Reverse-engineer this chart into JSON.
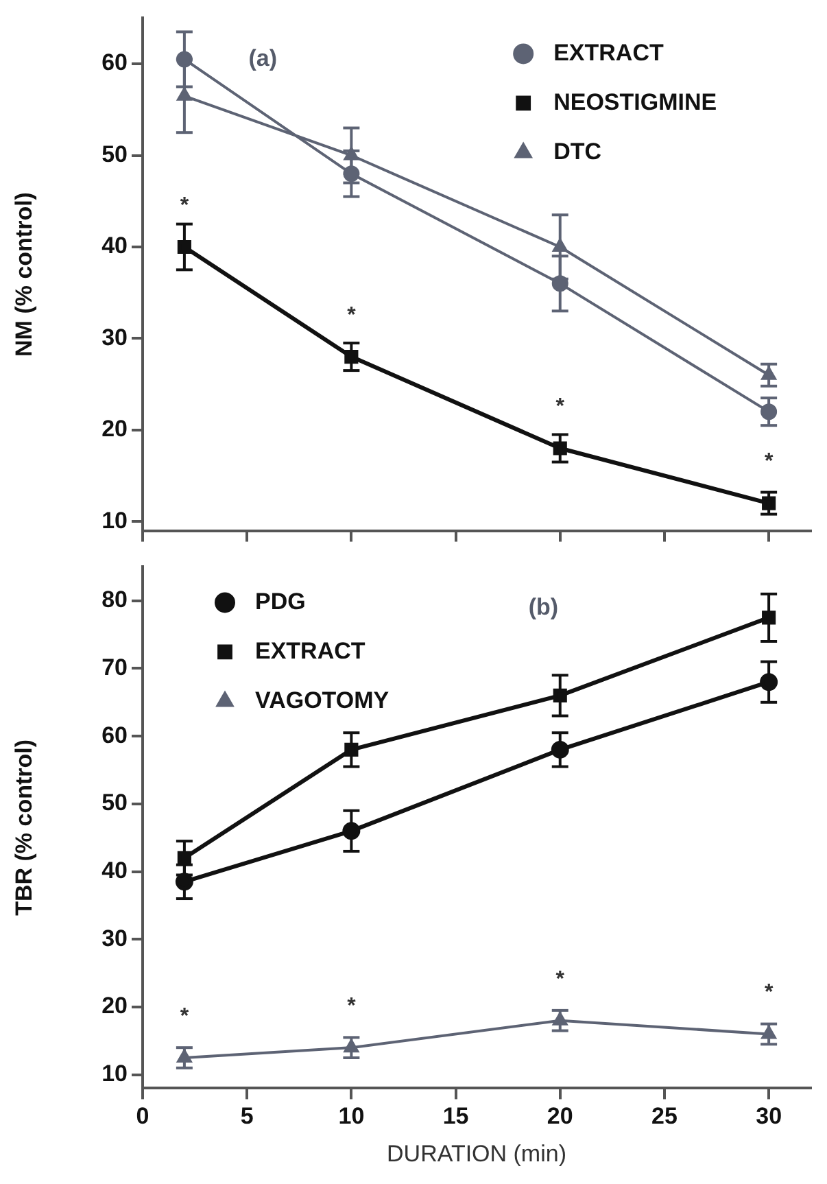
{
  "chart_data": [
    {
      "type": "line",
      "ylabel": "NM (% control)",
      "x": [
        2,
        10,
        20,
        30
      ],
      "xlim": [
        0,
        32
      ],
      "ylim": [
        9,
        65
      ],
      "xticks": [
        {
          "value": 0,
          "label": null
        },
        {
          "value": 5,
          "label": null
        },
        {
          "value": 10,
          "label": null
        },
        {
          "value": 15,
          "label": null
        },
        {
          "value": 20,
          "label": null
        },
        {
          "value": 25,
          "label": null
        },
        {
          "value": 30,
          "label": null
        }
      ],
      "yticks": [
        10,
        20,
        30,
        40,
        50,
        60
      ],
      "tick_labels": "y",
      "grid": false,
      "legend": "top right",
      "series": [
        {
          "name": "EXTRACT",
          "color": "#5d6374",
          "marker": "circle",
          "values": [
            60.5,
            48,
            36,
            22
          ],
          "errors": [
            3,
            2.5,
            3,
            1.5
          ]
        },
        {
          "name": "NEOSTIGMINE",
          "color": "#111111",
          "marker": "square",
          "values": [
            40,
            28,
            18,
            12
          ],
          "errors": [
            2.5,
            1.5,
            1.5,
            1.2
          ]
        },
        {
          "name": "DTC",
          "color": "#5d6374",
          "marker": "triangle",
          "values": [
            56.5,
            50,
            40,
            26
          ],
          "errors": [
            4,
            3,
            3.5,
            1.2
          ]
        }
      ],
      "annotations": [
        "(a)",
        {
          "text": "*",
          "x": 2,
          "y": 40
        },
        {
          "text": "*",
          "x": 10,
          "y": 28
        },
        {
          "text": "*",
          "x": 20,
          "y": 18
        },
        {
          "text": "*",
          "x": 30,
          "y": 12
        }
      ]
    },
    {
      "type": "line",
      "ylabel": "TBR (% control)",
      "xlabel": "DURATION (min)",
      "x": [
        2,
        10,
        20,
        30
      ],
      "xlim": [
        0,
        32
      ],
      "ylim": [
        8,
        85
      ],
      "xticks": [
        0,
        5,
        10,
        15,
        20,
        25,
        30
      ],
      "yticks": [
        10,
        20,
        30,
        40,
        50,
        60,
        70,
        80
      ],
      "grid": false,
      "legend": "top left",
      "series": [
        {
          "name": "PDG",
          "color": "#111111",
          "marker": "circle",
          "values": [
            38.5,
            46,
            58,
            68
          ],
          "errors": [
            2.5,
            3,
            2.5,
            3
          ]
        },
        {
          "name": "EXTRACT",
          "color": "#111111",
          "marker": "square",
          "values": [
            42,
            58,
            66,
            77.5
          ],
          "errors": [
            2.5,
            2.5,
            3,
            3.5
          ]
        },
        {
          "name": "VAGOTOMY",
          "color": "#5d6374",
          "marker": "triangle",
          "values": [
            12.5,
            14,
            18,
            16
          ],
          "errors": [
            1.5,
            1.5,
            1.5,
            1.5
          ]
        }
      ],
      "annotations": [
        "(b)",
        {
          "text": "*",
          "x": 2,
          "y": 12.5
        },
        {
          "text": "*",
          "x": 10,
          "y": 14
        },
        {
          "text": "*",
          "x": 20,
          "y": 18
        },
        {
          "text": "*",
          "x": 30,
          "y": 16
        }
      ]
    }
  ]
}
